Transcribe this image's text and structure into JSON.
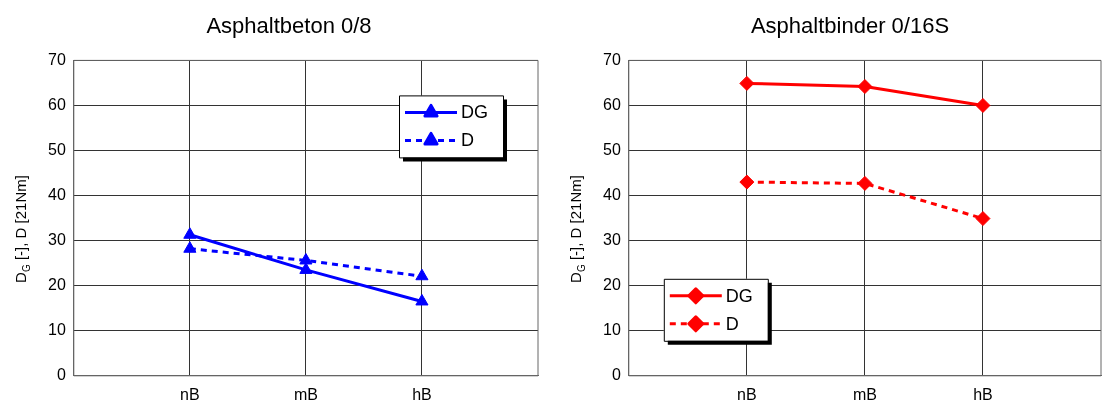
{
  "chart_data": [
    {
      "type": "line",
      "title": "Asphaltbeton 0/8",
      "ylabel": "D$_{G}$ [-], D [21Nm]",
      "categories": [
        "nB",
        "mB",
        "hB"
      ],
      "ylim": [
        0,
        70
      ],
      "yticks": [
        0,
        10,
        20,
        30,
        40,
        50,
        60,
        70
      ],
      "grid": true,
      "legend": "top right",
      "series": [
        {
          "name": "DG",
          "color": "#0000ff",
          "values": [
            31.3,
            23.5,
            16.5
          ],
          "marker": "triangle",
          "line_style": "solid"
        },
        {
          "name": "D",
          "color": "#0000ff",
          "values": [
            28.2,
            25.6,
            22.1
          ],
          "marker": "triangle",
          "line_style": "dashed"
        }
      ]
    },
    {
      "type": "line",
      "title": "Asphaltbinder 0/16S",
      "ylabel": "D$_{G}$ [-], D [21Nm]",
      "categories": [
        "nB",
        "mB",
        "hB"
      ],
      "ylim": [
        0,
        70
      ],
      "yticks": [
        0,
        10,
        20,
        30,
        40,
        50,
        60,
        70
      ],
      "grid": true,
      "legend": "bottom left",
      "series": [
        {
          "name": "DG",
          "color": "#ff0000",
          "values": [
            64.9,
            64.2,
            60.0
          ],
          "marker": "diamond",
          "line_style": "solid"
        },
        {
          "name": "D",
          "color": "#ff0000",
          "values": [
            43.0,
            42.7,
            34.9
          ],
          "marker": "diamond",
          "line_style": "dashed"
        }
      ]
    }
  ]
}
